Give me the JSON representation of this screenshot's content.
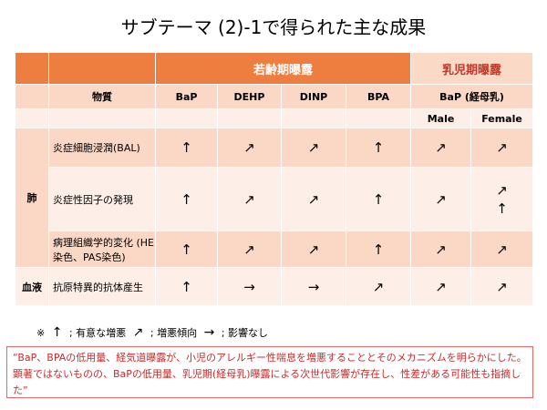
{
  "title": "サブテーマ (2)-1で得られた主な成果",
  "table": {
    "header": {
      "young": "若齢期曝露",
      "infant": "乳児期曝露"
    },
    "subheader": {
      "substance": "物質",
      "bap": "BaP",
      "dehp": "DEHP",
      "dinp": "DINP",
      "bpa": "BPA",
      "bap_milk": "BaP (経母乳)",
      "male": "Male",
      "female": "Female"
    },
    "organs": {
      "lung": "肺",
      "blood": "血液"
    },
    "rows": [
      {
        "label": "炎症細胞浸潤(BAL)",
        "cells": [
          "↑",
          "↗",
          "↗",
          "↑",
          "↗",
          "↗"
        ]
      },
      {
        "label": "炎症性因子の発現",
        "cells": [
          "↑",
          "↗",
          "↗",
          "↑",
          "↗",
          "↗\n↑"
        ]
      },
      {
        "label": "病理組織学的変化 (HE染色、PAS染色)",
        "cells": [
          "↑",
          "↗",
          "↗",
          "↑",
          "↗",
          "↗"
        ]
      },
      {
        "label": "抗原特異的抗体産生",
        "cells": [
          "↑",
          "→",
          "→",
          "↗",
          "↗",
          "↗"
        ]
      }
    ]
  },
  "legend": {
    "prefix": "※",
    "up": "↑",
    "up_text": "; 有意な増悪",
    "diag": "↗",
    "diag_text": "; 増悪傾向",
    "right": "→",
    "right_text": "; 影響なし"
  },
  "note": "“BaP、BPAの低用量、経気道曝露が、小児のアレルギー性喘息を増悪することとそのメカニズムを明らかにした。 顕著ではないものの、BaPの低用量、乳児期(経母乳)曝露による次世代影響が存在し、性差がある可能性も指摘した”"
}
